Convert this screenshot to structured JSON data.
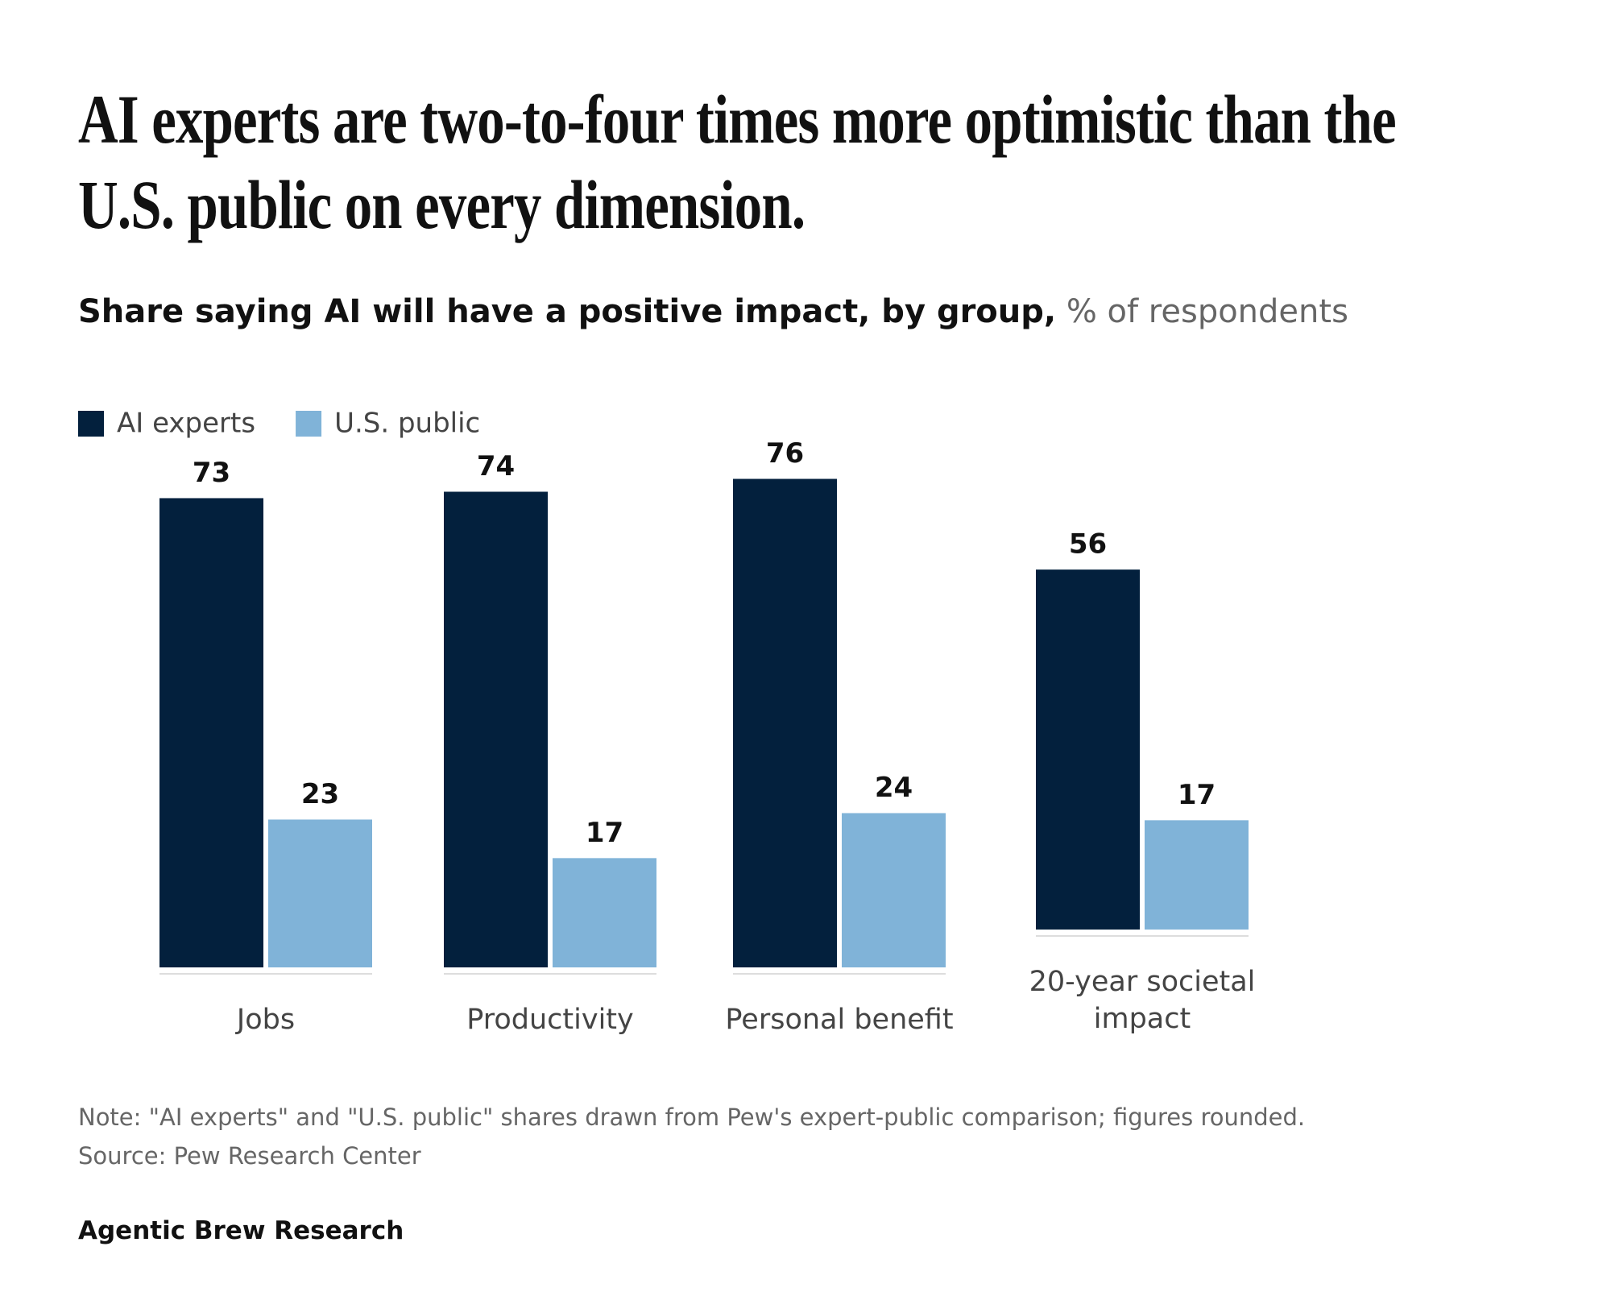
{
  "chart_data": {
    "type": "bar",
    "title": "AI experts are two-to-four times more optimistic than the U.S. public on every dimension.",
    "subtitle": "Share saying AI will have a positive impact, by group,",
    "unit": "% of respondents",
    "categories": [
      "Jobs",
      "Productivity",
      "Personal benefit",
      "20-year societal impact"
    ],
    "series": [
      {
        "name": "AI experts",
        "color": "#03203d",
        "values": [
          73,
          74,
          76,
          56
        ]
      },
      {
        "name": "U.S. public",
        "color": "#80b3d8",
        "values": [
          23,
          17,
          24,
          17
        ]
      }
    ],
    "ylim": [
      0,
      100
    ],
    "note": "Note: \"AI experts\" and \"U.S. public\" shares drawn from Pew's expert-public comparison; figures rounded.",
    "source": "Source: Pew Research Center",
    "brand": "Agentic Brew Research"
  }
}
